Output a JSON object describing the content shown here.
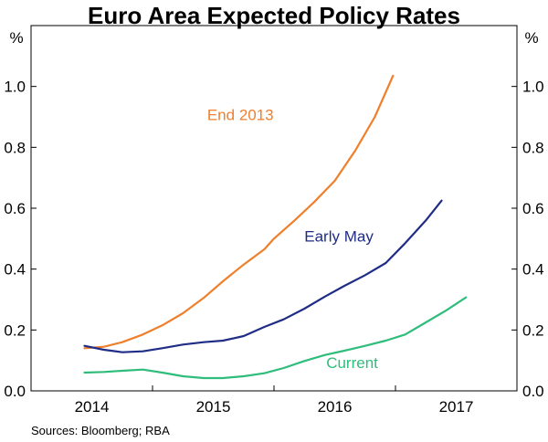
{
  "chart_data": {
    "type": "line",
    "title": "Euro Area Expected Policy Rates",
    "unit_left": "%",
    "unit_right": "%",
    "source": "Sources:  Bloomberg; RBA",
    "xlim": [
      2013.5,
      2017.5
    ],
    "ylim": [
      0.0,
      1.2
    ],
    "x_ticks": [
      2014,
      2015,
      2016,
      2017
    ],
    "x_tick_labels": [
      "2014",
      "2015",
      "2016",
      "2017"
    ],
    "y_ticks": [
      0.0,
      0.2,
      0.4,
      0.6,
      0.8,
      1.0
    ],
    "y_tick_labels": [
      "0.0",
      "0.2",
      "0.4",
      "0.6",
      "0.8",
      "1.0"
    ],
    "series": [
      {
        "name": "End 2013",
        "color": "#f07f2c",
        "label_x": 2014.95,
        "label_y": 0.89,
        "x": [
          2013.94,
          2014.1,
          2014.25,
          2014.42,
          2014.58,
          2014.75,
          2014.92,
          2015.08,
          2015.25,
          2015.42,
          2015.5,
          2015.67,
          2015.83,
          2016.0,
          2016.17,
          2016.33,
          2016.48
        ],
        "y": [
          0.14,
          0.145,
          0.16,
          0.185,
          0.215,
          0.255,
          0.305,
          0.36,
          0.415,
          0.465,
          0.5,
          0.56,
          0.62,
          0.69,
          0.79,
          0.9,
          1.035
        ]
      },
      {
        "name": "Early May",
        "color": "#1f2d87",
        "label_x": 2015.75,
        "label_y": 0.49,
        "x": [
          2013.94,
          2014.1,
          2014.25,
          2014.42,
          2014.58,
          2014.75,
          2014.92,
          2015.08,
          2015.25,
          2015.42,
          2015.58,
          2015.75,
          2015.92,
          2016.08,
          2016.25,
          2016.42,
          2016.58,
          2016.75,
          2016.88
        ],
        "y": [
          0.148,
          0.135,
          0.127,
          0.13,
          0.14,
          0.152,
          0.16,
          0.165,
          0.18,
          0.21,
          0.235,
          0.27,
          0.31,
          0.345,
          0.38,
          0.42,
          0.485,
          0.56,
          0.625
        ]
      },
      {
        "name": "Current",
        "color": "#2ebd7a",
        "label_x": 2015.93,
        "label_y": 0.075,
        "x": [
          2013.94,
          2014.1,
          2014.25,
          2014.42,
          2014.58,
          2014.75,
          2014.92,
          2015.08,
          2015.25,
          2015.42,
          2015.58,
          2015.75,
          2015.92,
          2016.08,
          2016.25,
          2016.42,
          2016.58,
          2016.75,
          2016.92,
          2017.08
        ],
        "y": [
          0.06,
          0.062,
          0.066,
          0.07,
          0.06,
          0.048,
          0.042,
          0.042,
          0.048,
          0.058,
          0.075,
          0.098,
          0.118,
          0.132,
          0.148,
          0.165,
          0.185,
          0.225,
          0.265,
          0.307
        ]
      }
    ]
  }
}
